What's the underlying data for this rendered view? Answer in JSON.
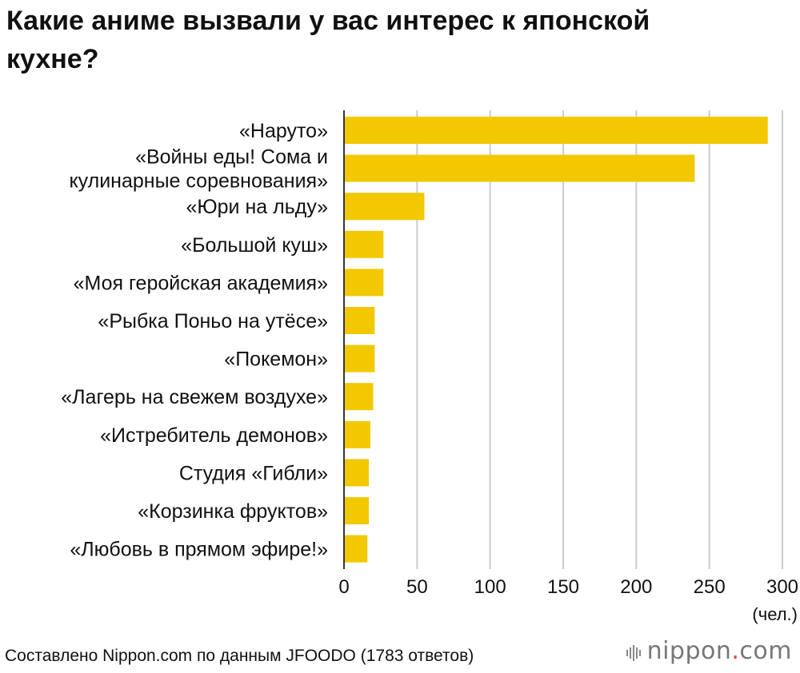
{
  "title": "Какие аниме вызвали у вас интерес к японской кухне?",
  "footer": "Составлено Nippon.com по данным JFOODO (1783 ответов)",
  "logo": {
    "name": "nippon",
    "dot": ".",
    "tld": "com"
  },
  "colors": {
    "bar": "#f2c800",
    "grid": "#cccccc",
    "axis": "#333333",
    "logo_dot": "#e8413a"
  },
  "chart_data": {
    "type": "bar",
    "orientation": "horizontal",
    "categories": [
      "«Наруто»",
      "«Войны еды! Сома и кулинарные соревнования»",
      "«Юри на льду»",
      "«Большой куш»",
      "«Моя геройская академия»",
      "«Рыбка Поньо на утёсе»",
      "«Покемон»",
      "«Лагерь на свежем воздухе»",
      "«Истребитель демонов»",
      "Студия «Гибли»",
      "«Корзинка фруктов»",
      "«Любовь в прямом эфире!»"
    ],
    "category_lines": [
      [
        "«Наруто»"
      ],
      [
        "«Войны еды! Сома и",
        "кулинарные соревнования»"
      ],
      [
        "«Юри на льду»"
      ],
      [
        "«Большой куш»"
      ],
      [
        "«Моя геройская академия»"
      ],
      [
        "«Рыбка Поньо на утёсе»"
      ],
      [
        "«Покемон»"
      ],
      [
        "«Лагерь на свежем воздухе»"
      ],
      [
        "«Истребитель демонов»"
      ],
      [
        "Студия «Гибли»"
      ],
      [
        "«Корзинка фруктов»"
      ],
      [
        "«Любовь в прямом эфире!»"
      ]
    ],
    "values": [
      290,
      240,
      55,
      27,
      27,
      21,
      21,
      20,
      18,
      17,
      17,
      16
    ],
    "xlim": [
      0,
      300
    ],
    "xticks": [
      "0",
      "50",
      "100",
      "150",
      "200",
      "250",
      "300"
    ],
    "xunit": "(чел.)",
    "grid": true
  }
}
